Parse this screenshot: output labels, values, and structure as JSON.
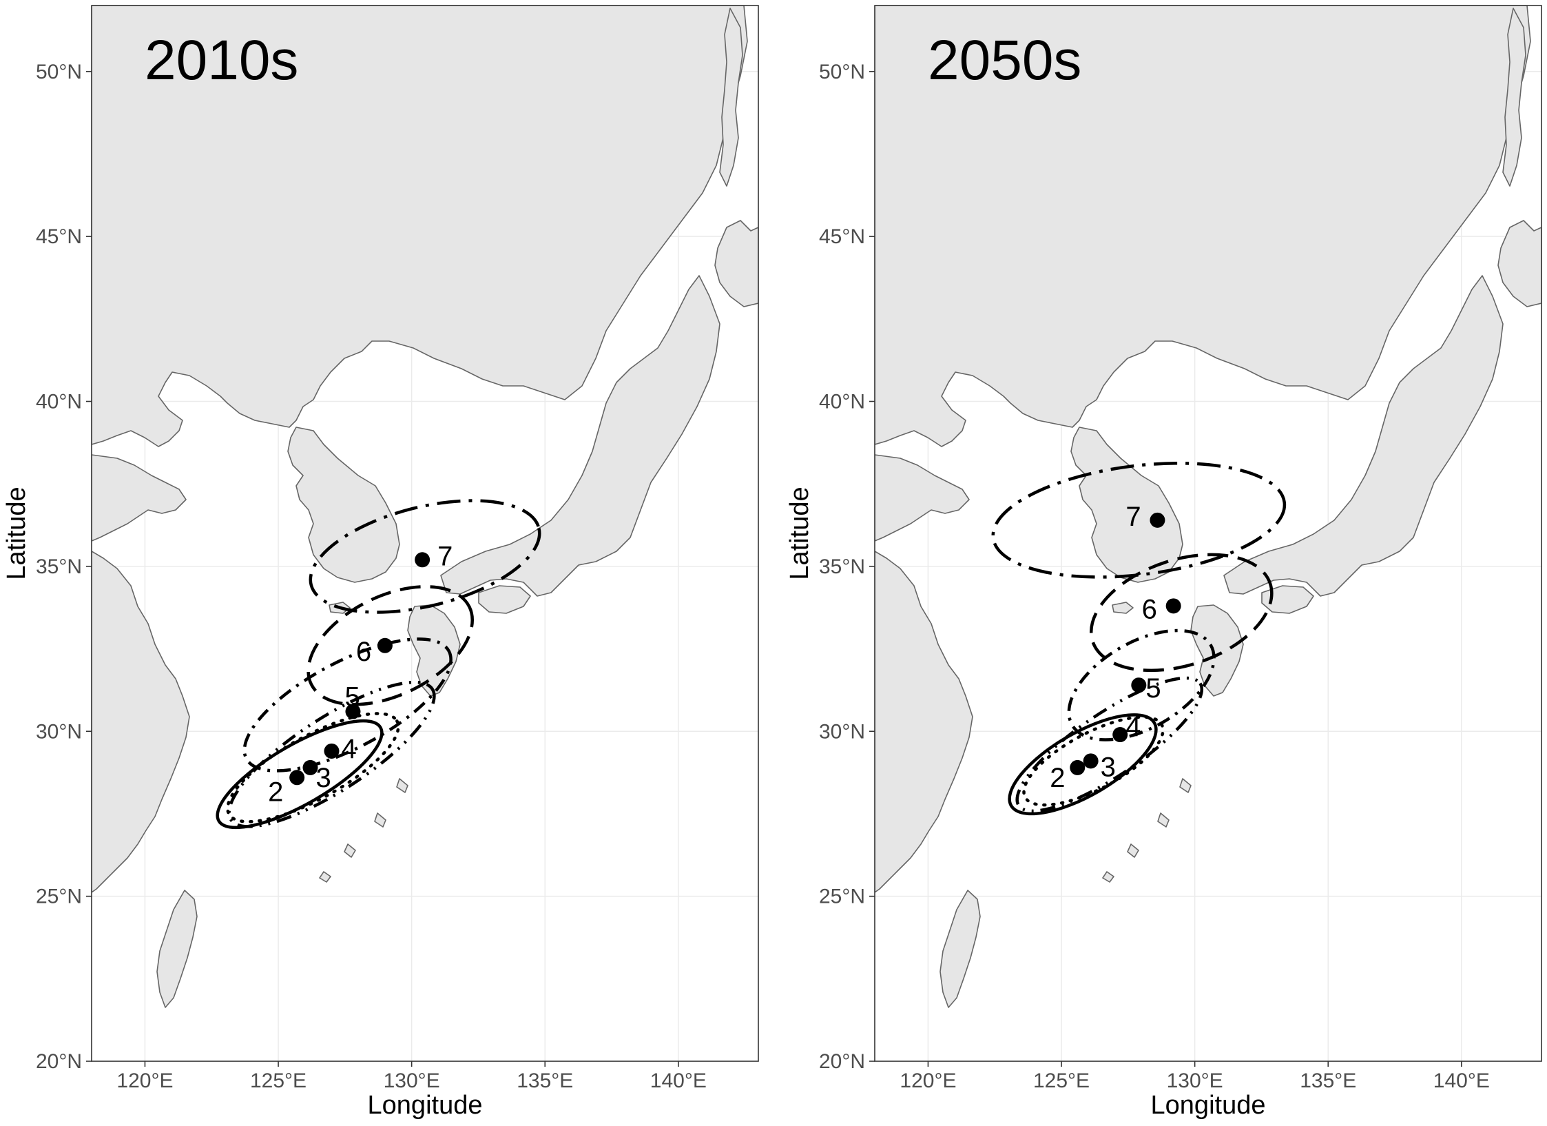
{
  "figure": {
    "x_axis_title": "Longitude",
    "y_axis_title": "Latitude",
    "x_ticks": [
      {
        "value": 120,
        "label": "120°E"
      },
      {
        "value": 125,
        "label": "125°E"
      },
      {
        "value": 130,
        "label": "130°E"
      },
      {
        "value": 135,
        "label": "135°E"
      },
      {
        "value": 140,
        "label": "140°E"
      }
    ],
    "y_ticks": [
      {
        "value": 20,
        "label": "20°N"
      },
      {
        "value": 25,
        "label": "25°N"
      },
      {
        "value": 30,
        "label": "30°N"
      },
      {
        "value": 35,
        "label": "35°N"
      },
      {
        "value": 40,
        "label": "40°N"
      },
      {
        "value": 45,
        "label": "45°N"
      },
      {
        "value": 50,
        "label": "50°N"
      }
    ],
    "xlim": [
      118,
      143
    ],
    "ylim": [
      20,
      52
    ],
    "colors": {
      "land": "#e6e6e6",
      "coast": "#666666",
      "grid": "#ebebeb",
      "points": "#000000",
      "ellipses": "#000000"
    }
  },
  "panels": [
    {
      "title": "2010s",
      "centroids": [
        {
          "label": "2",
          "lon": 125.7,
          "lat": 28.6
        },
        {
          "label": "3",
          "lon": 126.2,
          "lat": 28.9
        },
        {
          "label": "4",
          "lon": 127.0,
          "lat": 29.4
        },
        {
          "label": "5",
          "lon": 127.8,
          "lat": 30.6
        },
        {
          "label": "6",
          "lon": 129.0,
          "lat": 32.6
        },
        {
          "label": "7",
          "lon": 130.4,
          "lat": 35.2
        }
      ],
      "ellipses": [
        {
          "group": "2",
          "line": "solid",
          "lon": 125.8,
          "lat": 28.7,
          "width_deg": 7.0,
          "height_deg": 1.8,
          "angle_deg": 30
        },
        {
          "group": "3",
          "line": "dotted",
          "lon": 126.3,
          "lat": 28.9,
          "width_deg": 7.2,
          "height_deg": 1.9,
          "angle_deg": 29
        },
        {
          "group": "4",
          "line": "dash-dot-dot",
          "lon": 127.0,
          "lat": 29.3,
          "width_deg": 9.0,
          "height_deg": 2.2,
          "angle_deg": 33
        },
        {
          "group": "5",
          "line": "dash-dot",
          "lon": 127.6,
          "lat": 30.8,
          "width_deg": 8.6,
          "height_deg": 2.6,
          "angle_deg": 28
        },
        {
          "group": "6",
          "line": "long-dash",
          "lon": 129.2,
          "lat": 32.6,
          "width_deg": 6.6,
          "height_deg": 3.0,
          "angle_deg": 26
        },
        {
          "group": "7",
          "line": "dash-dot-long",
          "lon": 130.5,
          "lat": 35.3,
          "width_deg": 8.8,
          "height_deg": 3.0,
          "angle_deg": 14
        }
      ]
    },
    {
      "title": "2050s",
      "centroids": [
        {
          "label": "2",
          "lon": 125.6,
          "lat": 28.9
        },
        {
          "label": "3",
          "lon": 126.1,
          "lat": 29.1
        },
        {
          "label": "4",
          "lon": 127.2,
          "lat": 29.9
        },
        {
          "label": "5",
          "lon": 127.9,
          "lat": 31.4
        },
        {
          "label": "6",
          "lon": 129.2,
          "lat": 33.8
        },
        {
          "label": "7",
          "lon": 128.6,
          "lat": 36.4
        }
      ],
      "ellipses": [
        {
          "group": "2",
          "line": "solid",
          "lon": 125.8,
          "lat": 29.0,
          "width_deg": 6.2,
          "height_deg": 1.9,
          "angle_deg": 30
        },
        {
          "group": "3",
          "line": "dotted",
          "lon": 126.2,
          "lat": 29.1,
          "width_deg": 5.8,
          "height_deg": 1.7,
          "angle_deg": 28
        },
        {
          "group": "4",
          "line": "dash-dot-dot",
          "lon": 126.8,
          "lat": 29.6,
          "width_deg": 8.2,
          "height_deg": 1.9,
          "angle_deg": 34
        },
        {
          "group": "5",
          "line": "dash-dot",
          "lon": 128.0,
          "lat": 31.4,
          "width_deg": 6.0,
          "height_deg": 2.6,
          "angle_deg": 30
        },
        {
          "group": "6",
          "line": "long-dash",
          "lon": 129.5,
          "lat": 33.6,
          "width_deg": 7.0,
          "height_deg": 3.2,
          "angle_deg": 18
        },
        {
          "group": "7",
          "line": "dash-dot-long",
          "lon": 127.9,
          "lat": 36.4,
          "width_deg": 11.0,
          "height_deg": 3.3,
          "angle_deg": 7
        }
      ]
    }
  ]
}
